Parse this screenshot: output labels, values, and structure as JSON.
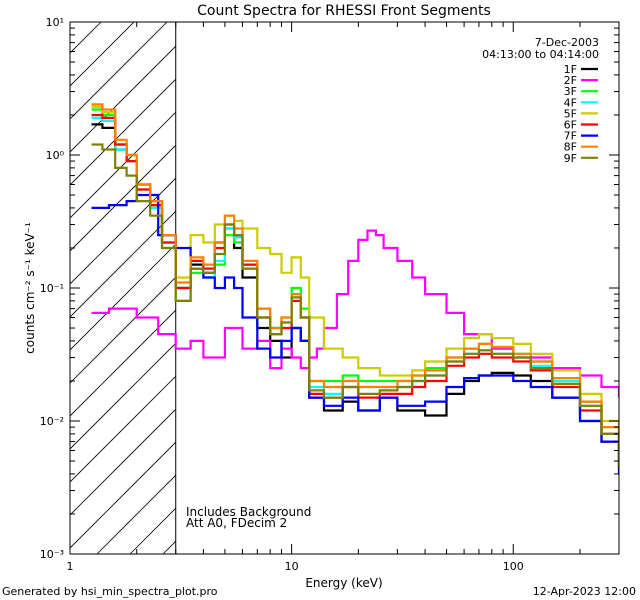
{
  "chart_data": {
    "type": "line",
    "title": "Count Spectra for RHESSI Front Segments",
    "xlabel": "Energy (keV)",
    "ylabel": "counts cm⁻² s⁻¹ keV⁻¹",
    "xscale": "log",
    "yscale": "log",
    "xlim": [
      1,
      300
    ],
    "ylim": [
      0.001,
      10
    ],
    "x_ticks": [
      "1",
      "10",
      "100"
    ],
    "y_ticks": [
      "10⁻³",
      "10⁻²",
      "10⁻¹",
      "10⁰",
      "10¹"
    ],
    "hatched_region_keV": [
      1,
      3
    ],
    "date": "7-Dec-2003",
    "time_range": "04:13:00 to 04:14:00",
    "annotations": [
      "Includes Background",
      "Att A0, FDecim 2"
    ],
    "footer_left": "Generated by hsi_min_spectra_plot.pro",
    "footer_right": "12-Apr-2023 12:00",
    "legend_position": "top-right",
    "series": [
      {
        "name": "1F",
        "color": "#000000",
        "x": [
          1.25,
          1.4,
          1.6,
          1.8,
          2.0,
          2.3,
          2.6,
          3.0,
          3.5,
          4.0,
          4.5,
          5.0,
          5.5,
          6.0,
          7.0,
          8.0,
          9.0,
          10.0,
          11.0,
          12.0,
          14.0,
          17.0,
          20.0,
          25.0,
          30.0,
          35.0,
          40.0,
          50.0,
          60.0,
          70.0,
          80.0,
          100.0,
          120.0,
          150.0,
          200.0,
          250.0,
          300.0
        ],
        "values": [
          1.7,
          1.6,
          1.1,
          0.9,
          0.6,
          0.45,
          0.25,
          0.1,
          0.15,
          0.13,
          0.22,
          0.28,
          0.2,
          0.12,
          0.05,
          0.04,
          0.03,
          0.05,
          0.04,
          0.015,
          0.012,
          0.014,
          0.012,
          0.015,
          0.012,
          0.012,
          0.011,
          0.016,
          0.02,
          0.022,
          0.023,
          0.022,
          0.02,
          0.015,
          0.01,
          0.007,
          0.0045
        ]
      },
      {
        "name": "2F",
        "color": "#ff00ff",
        "x": [
          1.25,
          1.5,
          2.0,
          2.5,
          3.0,
          3.5,
          4.0,
          5.0,
          6.0,
          7.0,
          8.0,
          9.0,
          10.0,
          11.0,
          12.0,
          13.0,
          14.0,
          16.0,
          18.0,
          20.0,
          22.0,
          24.0,
          26.0,
          30.0,
          35.0,
          40.0,
          50.0,
          60.0,
          80.0,
          100.0,
          150.0,
          200.0,
          250.0,
          300.0
        ],
        "values": [
          0.065,
          0.07,
          0.06,
          0.045,
          0.035,
          0.04,
          0.03,
          0.05,
          0.035,
          0.04,
          0.025,
          0.035,
          0.03,
          0.025,
          0.03,
          0.035,
          0.05,
          0.09,
          0.16,
          0.23,
          0.27,
          0.25,
          0.2,
          0.16,
          0.12,
          0.09,
          0.065,
          0.045,
          0.035,
          0.03,
          0.025,
          0.022,
          0.018,
          0.015
        ]
      },
      {
        "name": "3F",
        "color": "#00ff00",
        "x": [
          1.25,
          1.4,
          1.6,
          1.8,
          2.0,
          2.3,
          2.6,
          3.0,
          3.5,
          4.0,
          4.5,
          5.0,
          5.5,
          6.0,
          7.0,
          8.0,
          9.0,
          10.0,
          11.0,
          12.0,
          14.0,
          17.0,
          20.0,
          25.0,
          30.0,
          35.0,
          40.0,
          50.0,
          60.0,
          70.0,
          80.0,
          100.0,
          120.0,
          150.0,
          200.0,
          250.0,
          300.0
        ],
        "values": [
          2.2,
          2.0,
          1.2,
          1.0,
          0.55,
          0.4,
          0.2,
          0.08,
          0.13,
          0.12,
          0.15,
          0.25,
          0.22,
          0.15,
          0.07,
          0.05,
          0.06,
          0.1,
          0.07,
          0.02,
          0.02,
          0.022,
          0.02,
          0.02,
          0.02,
          0.022,
          0.025,
          0.03,
          0.035,
          0.038,
          0.036,
          0.032,
          0.028,
          0.02,
          0.014,
          0.009,
          0.005
        ]
      },
      {
        "name": "4F",
        "color": "#00ffff",
        "x": [
          1.25,
          1.4,
          1.6,
          1.8,
          2.0,
          2.3,
          2.6,
          3.0,
          3.5,
          4.0,
          4.5,
          5.0,
          5.5,
          6.0,
          7.0,
          8.0,
          9.0,
          10.0,
          11.0,
          12.0,
          14.0,
          17.0,
          20.0,
          25.0,
          30.0,
          35.0,
          40.0,
          50.0,
          60.0,
          70.0,
          80.0,
          100.0,
          120.0,
          150.0,
          200.0,
          250.0,
          300.0
        ],
        "values": [
          1.9,
          1.8,
          1.1,
          0.9,
          0.55,
          0.4,
          0.22,
          0.1,
          0.14,
          0.12,
          0.16,
          0.28,
          0.24,
          0.14,
          0.06,
          0.05,
          0.05,
          0.09,
          0.06,
          0.018,
          0.016,
          0.02,
          0.018,
          0.018,
          0.018,
          0.02,
          0.022,
          0.028,
          0.032,
          0.034,
          0.032,
          0.03,
          0.026,
          0.02,
          0.013,
          0.008,
          0.0045
        ]
      },
      {
        "name": "5F",
        "color": "#cccc00",
        "x": [
          1.25,
          1.4,
          1.6,
          1.8,
          2.0,
          2.3,
          2.6,
          3.0,
          3.5,
          4.0,
          4.5,
          5.0,
          5.5,
          6.0,
          7.0,
          8.0,
          9.0,
          10.0,
          11.0,
          12.0,
          14.0,
          17.0,
          20.0,
          25.0,
          30.0,
          35.0,
          40.0,
          50.0,
          60.0,
          70.0,
          80.0,
          100.0,
          120.0,
          150.0,
          200.0,
          250.0,
          300.0
        ],
        "values": [
          2.3,
          2.1,
          1.2,
          1.0,
          0.6,
          0.45,
          0.25,
          0.12,
          0.25,
          0.22,
          0.3,
          0.35,
          0.32,
          0.28,
          0.2,
          0.18,
          0.13,
          0.17,
          0.12,
          0.06,
          0.035,
          0.03,
          0.025,
          0.022,
          0.022,
          0.024,
          0.028,
          0.035,
          0.042,
          0.045,
          0.042,
          0.038,
          0.032,
          0.024,
          0.016,
          0.01,
          0.006
        ]
      },
      {
        "name": "6F",
        "color": "#ff0000",
        "x": [
          1.25,
          1.4,
          1.6,
          1.8,
          2.0,
          2.3,
          2.6,
          3.0,
          3.5,
          4.0,
          4.5,
          5.0,
          5.5,
          6.0,
          7.0,
          8.0,
          9.0,
          10.0,
          11.0,
          12.0,
          14.0,
          17.0,
          20.0,
          25.0,
          30.0,
          35.0,
          40.0,
          50.0,
          60.0,
          70.0,
          80.0,
          100.0,
          120.0,
          150.0,
          200.0,
          250.0,
          300.0
        ],
        "values": [
          2.0,
          1.9,
          1.2,
          0.9,
          0.55,
          0.42,
          0.22,
          0.1,
          0.16,
          0.14,
          0.2,
          0.3,
          0.25,
          0.15,
          0.06,
          0.045,
          0.05,
          0.08,
          0.06,
          0.016,
          0.015,
          0.018,
          0.015,
          0.016,
          0.016,
          0.018,
          0.02,
          0.026,
          0.03,
          0.032,
          0.03,
          0.028,
          0.024,
          0.018,
          0.012,
          0.008,
          0.0042
        ]
      },
      {
        "name": "7F",
        "color": "#0000ff",
        "x": [
          1.25,
          1.5,
          1.8,
          2.0,
          2.5,
          3.0,
          3.5,
          4.0,
          4.5,
          5.0,
          5.5,
          6.0,
          7.0,
          8.0,
          9.0,
          10.0,
          11.0,
          12.0,
          14.0,
          17.0,
          20.0,
          25.0,
          30.0,
          35.0,
          40.0,
          50.0,
          60.0,
          70.0,
          80.0,
          100.0,
          120.0,
          150.0,
          200.0,
          250.0,
          300.0
        ],
        "values": [
          0.4,
          0.42,
          0.45,
          0.5,
          0.25,
          0.2,
          0.14,
          0.12,
          0.1,
          0.12,
          0.1,
          0.06,
          0.035,
          0.03,
          0.04,
          0.05,
          0.04,
          0.015,
          0.013,
          0.015,
          0.012,
          0.015,
          0.013,
          0.013,
          0.014,
          0.018,
          0.021,
          0.022,
          0.022,
          0.02,
          0.018,
          0.015,
          0.01,
          0.007,
          0.004
        ]
      },
      {
        "name": "8F",
        "color": "#ff8000",
        "x": [
          1.25,
          1.4,
          1.6,
          1.8,
          2.0,
          2.3,
          2.6,
          3.0,
          3.5,
          4.0,
          4.5,
          5.0,
          5.5,
          6.0,
          7.0,
          8.0,
          9.0,
          10.0,
          11.0,
          12.0,
          14.0,
          17.0,
          20.0,
          25.0,
          30.0,
          35.0,
          40.0,
          50.0,
          60.0,
          70.0,
          80.0,
          100.0,
          120.0,
          150.0,
          200.0,
          250.0,
          300.0
        ],
        "values": [
          2.4,
          2.2,
          1.3,
          1.0,
          0.6,
          0.45,
          0.25,
          0.11,
          0.17,
          0.15,
          0.22,
          0.35,
          0.28,
          0.16,
          0.07,
          0.05,
          0.06,
          0.09,
          0.06,
          0.02,
          0.018,
          0.02,
          0.018,
          0.018,
          0.02,
          0.022,
          0.024,
          0.03,
          0.035,
          0.038,
          0.036,
          0.032,
          0.028,
          0.021,
          0.014,
          0.009,
          0.005
        ]
      },
      {
        "name": "9F",
        "color": "#808000",
        "x": [
          1.25,
          1.4,
          1.6,
          1.8,
          2.0,
          2.3,
          2.6,
          3.0,
          3.5,
          4.0,
          4.5,
          5.0,
          5.5,
          6.0,
          7.0,
          8.0,
          9.0,
          10.0,
          11.0,
          12.0,
          14.0,
          17.0,
          20.0,
          25.0,
          30.0,
          35.0,
          40.0,
          50.0,
          60.0,
          70.0,
          80.0,
          100.0,
          120.0,
          150.0,
          200.0,
          250.0,
          300.0
        ],
        "values": [
          1.2,
          1.1,
          0.8,
          0.7,
          0.45,
          0.35,
          0.2,
          0.08,
          0.14,
          0.13,
          0.18,
          0.3,
          0.25,
          0.14,
          0.06,
          0.045,
          0.055,
          0.085,
          0.06,
          0.017,
          0.015,
          0.018,
          0.016,
          0.017,
          0.018,
          0.02,
          0.022,
          0.028,
          0.032,
          0.034,
          0.032,
          0.03,
          0.025,
          0.019,
          0.013,
          0.008,
          0.0045
        ]
      }
    ]
  }
}
